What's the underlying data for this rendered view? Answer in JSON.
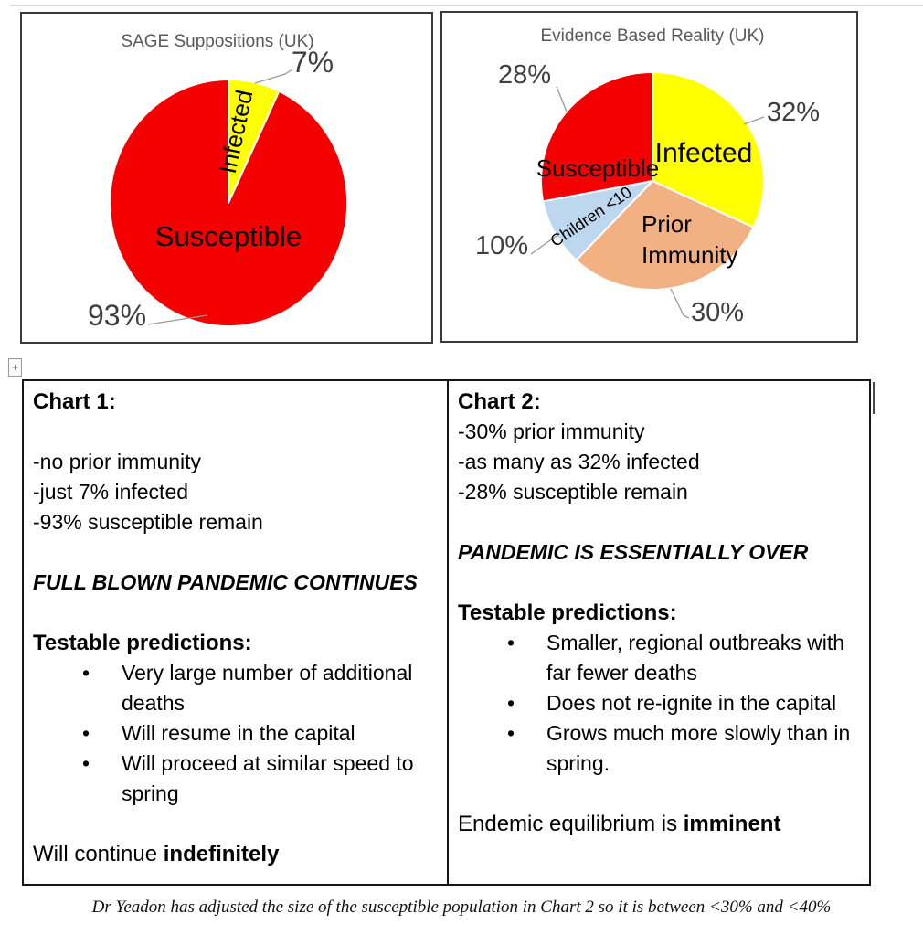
{
  "chart_data": [
    {
      "type": "pie",
      "title": "SAGE Suppositions (UK)",
      "legend_position": "none",
      "slices": [
        {
          "label": "Infected",
          "value": 7,
          "pct_label": "7%",
          "color": "#FFFF00"
        },
        {
          "label": "Susceptible",
          "value": 93,
          "pct_label": "93%",
          "color": "#F40000"
        }
      ]
    },
    {
      "type": "pie",
      "title": "Evidence Based Reality (UK)",
      "legend_position": "none",
      "slices": [
        {
          "label": "Infected",
          "value": 32,
          "pct_label": "32%",
          "color": "#FFFF00"
        },
        {
          "label": "Prior Immunity",
          "value": 30,
          "pct_label": "30%",
          "color": "#F2B183"
        },
        {
          "label": "Children <10",
          "value": 10,
          "pct_label": "10%",
          "color": "#BDD7EE"
        },
        {
          "label": "Susceptible",
          "value": 28,
          "pct_label": "28%",
          "color": "#F40000"
        }
      ]
    }
  ],
  "comparison_table": {
    "col1": {
      "heading": "Chart 1:",
      "points": [
        "-no prior immunity",
        "-just 7% infected",
        "-93% susceptible remain"
      ],
      "verdict": "FULL BLOWN PANDEMIC CONTINUES",
      "predictions_heading": "Testable predictions:",
      "bullets": [
        [
          "Very large number of additional",
          "deaths"
        ],
        [
          "Will resume in the capital"
        ],
        [
          "Will proceed at similar speed to",
          "spring"
        ]
      ],
      "conclusion_prefix": "Will continue ",
      "conclusion_bold": "indefinitely"
    },
    "col2": {
      "heading": "Chart 2:",
      "points": [
        "-30% prior immunity",
        "-as many as 32% infected",
        "-28% susceptible remain"
      ],
      "verdict": "PANDEMIC IS ESSENTIALLY OVER",
      "predictions_heading": "Testable predictions:",
      "bullets": [
        [
          "Smaller, regional outbreaks with",
          "far fewer deaths"
        ],
        [
          "Does not re-ignite in the capital"
        ],
        [
          "Grows much more slowly than in",
          "spring."
        ]
      ],
      "conclusion_prefix": "Endemic equilibrium is ",
      "conclusion_bold": "imminent"
    }
  },
  "footer_note": "Dr Yeadon has adjusted the size of the susceptible population in Chart 2 so it is between <30% and <40%",
  "icons": {
    "bullet": "•",
    "table_move_handle": "+"
  },
  "colors": {
    "red": "#F40000",
    "yellow": "#FFFF00",
    "peach": "#F2B183",
    "light_blue": "#BDD7EE",
    "title_gray": "#595959",
    "label_gray": "#3F3F3F",
    "leader_gray": "#9A9A9A",
    "slice_stroke": "#FFFFFF"
  }
}
